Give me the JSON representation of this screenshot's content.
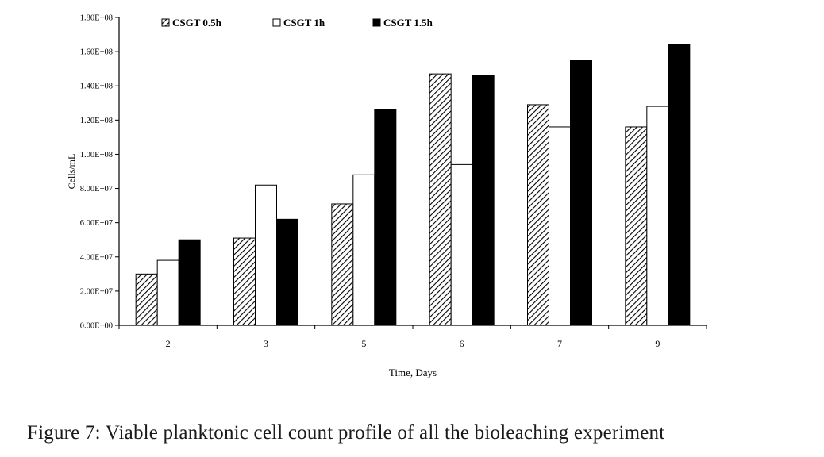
{
  "caption": "Figure 7: Viable planktonic cell count profile of all the bioleaching experiment",
  "chart_data": {
    "type": "bar",
    "xlabel": "Time, Days",
    "ylabel": "Cells/mL",
    "categories": [
      "2",
      "3",
      "5",
      "6",
      "7",
      "9"
    ],
    "ylim": [
      0,
      180000000
    ],
    "yticks": [
      0,
      20000000,
      40000000,
      60000000,
      80000000,
      100000000,
      120000000,
      140000000,
      160000000,
      180000000
    ],
    "ytick_labels": [
      "0.00E+00",
      "2.00E+07",
      "4.00E+07",
      "6.00E+07",
      "8.00E+07",
      "1.00E+08",
      "1.20E+08",
      "1.40E+08",
      "1.60E+08",
      "1.80E+08"
    ],
    "grid": false,
    "legend_position": "top-left",
    "series": [
      {
        "name": "CSGT 0.5h",
        "fill": "hatch",
        "values": [
          30000000,
          51000000,
          71000000,
          147000000,
          129000000,
          116000000
        ]
      },
      {
        "name": "CSGT 1h",
        "fill": "white",
        "values": [
          38000000,
          82000000,
          88000000,
          94000000,
          116000000,
          128000000
        ]
      },
      {
        "name": "CSGT 1.5h",
        "fill": "black",
        "values": [
          50000000,
          62000000,
          126000000,
          146000000,
          155000000,
          164000000
        ]
      }
    ]
  }
}
